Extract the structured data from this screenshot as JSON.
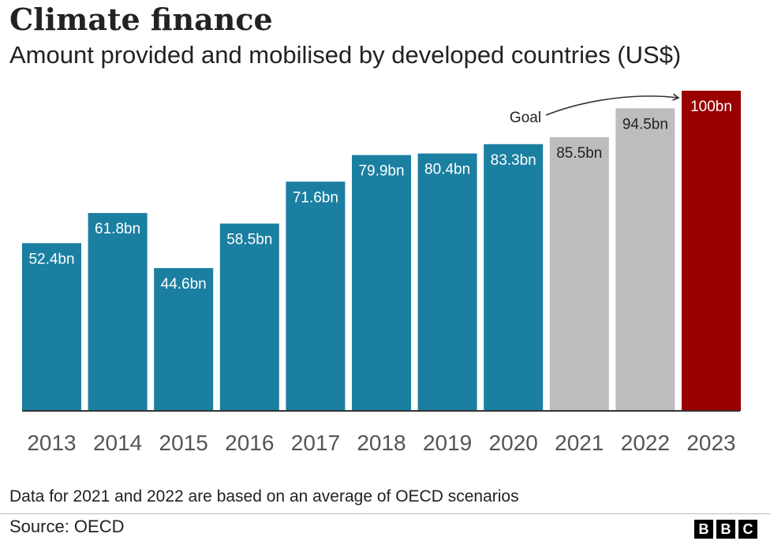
{
  "title": "Climate finance",
  "subtitle": "Amount provided and mobilised by developed countries (US$)",
  "note": "Data for 2021 and 2022 are based on an average of OECD scenarios",
  "source": "Source: OECD",
  "logo": "BBC",
  "colors": {
    "actual": "#1a7fa1",
    "estimate": "#bdbdbd",
    "goal": "#990000",
    "axis": "#333333"
  },
  "chart_data": {
    "type": "bar",
    "title": "Climate finance",
    "subtitle": "Amount provided and mobilised by developed countries (US$)",
    "unit": "US$ bn",
    "categories": [
      "2013",
      "2014",
      "2015",
      "2016",
      "2017",
      "2018",
      "2019",
      "2020",
      "2021",
      "2022",
      "2023"
    ],
    "values": [
      52.4,
      61.8,
      44.6,
      58.5,
      71.6,
      79.9,
      80.4,
      83.3,
      85.5,
      94.5,
      100
    ],
    "labels": [
      "52.4bn",
      "61.8bn",
      "44.6bn",
      "58.5bn",
      "71.6bn",
      "79.9bn",
      "80.4bn",
      "83.3bn",
      "85.5bn",
      "94.5bn",
      "100bn"
    ],
    "kinds": [
      "actual",
      "actual",
      "actual",
      "actual",
      "actual",
      "actual",
      "actual",
      "actual",
      "estimate",
      "estimate",
      "goal"
    ],
    "ylim": [
      0,
      100
    ],
    "grid": false,
    "legend": "none",
    "annotations": [
      {
        "text": "Goal",
        "target": "2023"
      }
    ]
  }
}
